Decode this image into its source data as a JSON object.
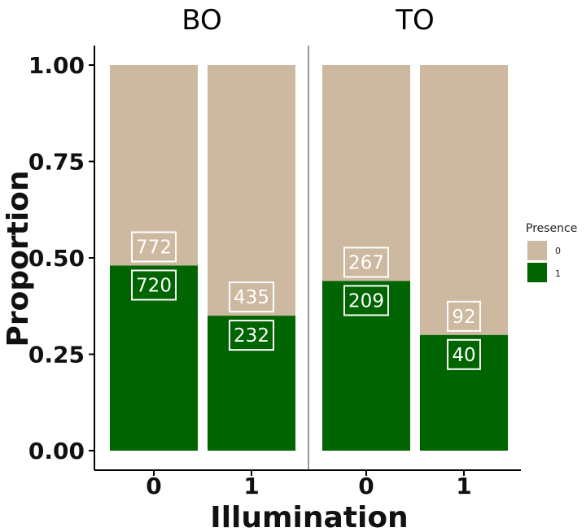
{
  "chart_data": {
    "type": "bar",
    "stacked": true,
    "normalized": true,
    "facets": [
      {
        "name": "BO",
        "categories": [
          "0",
          "1"
        ],
        "counts": {
          "0": [
            772,
            435
          ],
          "1": [
            720,
            232
          ]
        },
        "proportion_presence_1": [
          0.48,
          0.35
        ]
      },
      {
        "name": "TO",
        "categories": [
          "0",
          "1"
        ],
        "counts": {
          "0": [
            267,
            92
          ],
          "1": [
            209,
            40
          ]
        },
        "proportion_presence_1": [
          0.44,
          0.3
        ]
      }
    ],
    "xlabel": "Illumination",
    "ylabel": "Proportion",
    "ylim": [
      0,
      1
    ],
    "yticks": [
      "0.00",
      "0.25",
      "0.50",
      "0.75",
      "1.00"
    ],
    "grid": false,
    "legend": {
      "title": "Presence",
      "placement": "right",
      "entries": [
        {
          "label": "0",
          "color": "#cdb8a0"
        },
        {
          "label": "1",
          "color": "#006400"
        }
      ]
    },
    "colors": {
      "presence_0": "#cdb8a0",
      "presence_1": "#006400"
    }
  }
}
